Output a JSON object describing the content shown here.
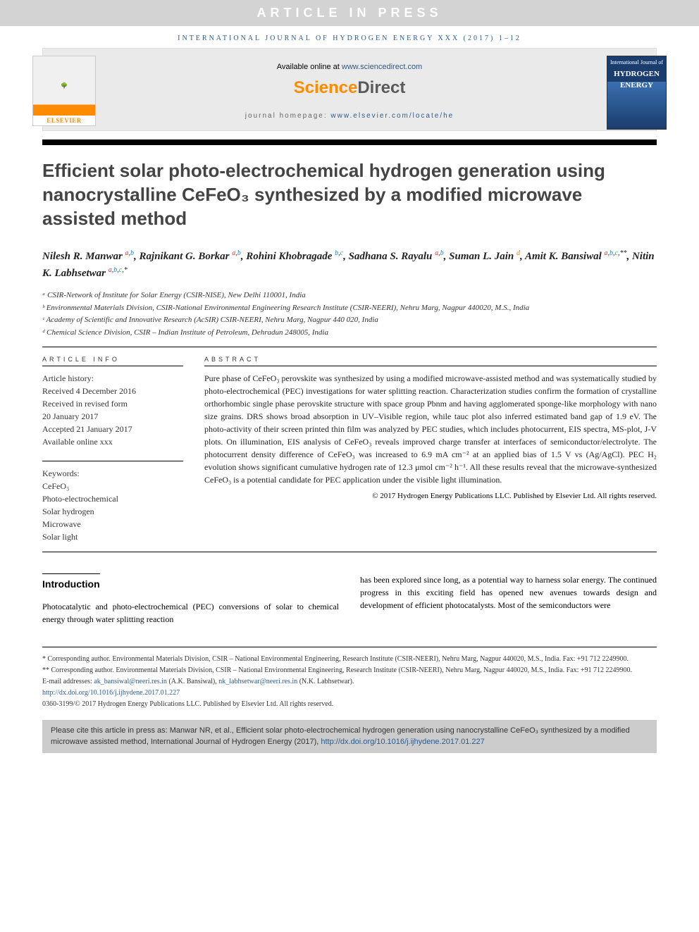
{
  "press_banner": "ARTICLE IN PRESS",
  "journal_header": "INTERNATIONAL JOURNAL OF HYDROGEN ENERGY XXX (2017) 1–12",
  "elsevier": "ELSEVIER",
  "available_prefix": "Available online at ",
  "available_link": "www.sciencedirect.com",
  "sd_logo_1": "Science",
  "sd_logo_2": "Direct",
  "homepage_prefix": "journal homepage: ",
  "homepage_link": "www.elsevier.com/locate/he",
  "cover_line1": "International Journal of",
  "cover_line2": "HYDROGEN",
  "cover_line3": "ENERGY",
  "title": "Efficient solar photo-electrochemical hydrogen generation using nanocrystalline CeFeO₃ synthesized by a modified microwave assisted method",
  "authors_html": "Nilesh R. Manwar <sup class='sup-a'>a</sup><sup>,</sup><sup class='sup-b'>b</sup>, Rajnikant G. Borkar <sup class='sup-a'>a</sup><sup>,</sup><sup class='sup-b'>b</sup>, Rohini Khobragade <sup class='sup-b'>b</sup><sup>,</sup><sup class='sup-c'>c</sup>, Sadhana S. Rayalu <sup class='sup-a'>a</sup><sup>,</sup><sup class='sup-b'>b</sup>, Suman L. Jain <sup class='sup-d'>d</sup>, Amit K. Bansiwal <sup class='sup-a'>a</sup><sup>,</sup><sup class='sup-b'>b</sup><sup>,</sup><sup class='sup-c'>c</sup><sup>,**</sup>, Nitin K. Labhsetwar <sup class='sup-a'>a</sup><sup>,</sup><sup class='sup-b'>b</sup><sup>,</sup><sup class='sup-c'>c</sup><sup>,*</sup>",
  "affiliations": {
    "a": "ᵃ CSIR-Network of Institute for Solar Energy (CSIR-NISE), New Delhi 110001, India",
    "b": "ᵇ Environmental Materials Division, CSIR-National Environmental Engineering Research Institute (CSIR-NEERI), Nehru Marg, Nagpur 440020, M.S., India",
    "c": "ᶜ Academy of Scientific and Innovative Research (AcSIR) CSIR-NEERI, Nehru Marg, Nagpur 440 020, India",
    "d": "ᵈ Chemical Science Division, CSIR – Indian Institute of Petroleum, Dehradun 248005, India"
  },
  "info_heading": "ARTICLE INFO",
  "abstract_heading": "ABSTRACT",
  "history_label": "Article history:",
  "history": {
    "received": "Received 4 December 2016",
    "revised1": "Received in revised form",
    "revised2": "20 January 2017",
    "accepted": "Accepted 21 January 2017",
    "online": "Available online xxx"
  },
  "keywords_label": "Keywords:",
  "keywords": [
    "CeFeO₃",
    "Photo-electrochemical",
    "Solar hydrogen",
    "Microwave",
    "Solar light"
  ],
  "abstract": "Pure phase of CeFeO₃ perovskite was synthesized by using a modified microwave-assisted method and was systematically studied by photo-electrochemical (PEC) investigations for water splitting reaction. Characterization studies confirm the formation of crystalline orthorhombic single phase perovskite structure with space group Pbnm and having agglomerated sponge-like morphology with nano size grains. DRS shows broad absorption in UV–Visible region, while tauc plot also inferred estimated band gap of 1.9 eV. The photo-activity of their screen printed thin film was analyzed by PEC studies, which includes photocurrent, EIS spectra, MS-plot, J-V plots. On illumination, EIS analysis of CeFeO₃ reveals improved charge transfer at interfaces of semiconductor/electrolyte. The photocurrent density difference of CeFeO₃ was increased to 6.9 mA cm⁻² at an applied bias of 1.5 V vs (Ag/AgCl). PEC H₂ evolution shows significant cumulative hydrogen rate of 12.3 μmol cm⁻² h⁻¹. All these results reveal that the microwave-synthesized CeFeO₃ is a potential candidate for PEC application under the visible light illumination.",
  "copyright": "© 2017 Hydrogen Energy Publications LLC. Published by Elsevier Ltd. All rights reserved.",
  "intro_heading": "Introduction",
  "intro_col1": "Photocatalytic and photo-electrochemical (PEC) conversions of solar to chemical energy through water splitting reaction",
  "intro_col2": "has been explored since long, as a potential way to harness solar energy. The continued progress in this exciting field has opened new avenues towards design and development of efficient photocatalysts. Most of the semiconductors were",
  "footnotes": {
    "corr1": "* Corresponding author. Environmental Materials Division, CSIR – National Environmental Engineering, Research Institute (CSIR-NEERI), Nehru Marg, Nagpur 440020, M.S., India. Fax: +91 712 2249900.",
    "corr2": "** Corresponding author. Environmental Materials Division, CSIR – National Environmental Engineering, Research Institute (CSIR-NEERI), Nehru Marg, Nagpur 440020, M.S., India. Fax: +91 712 2249900.",
    "email_prefix": "E-mail addresses: ",
    "email1": "ak_bansiwal@neeri.res.in",
    "email1_name": " (A.K. Bansiwal), ",
    "email2": "nk_labhsetwar@neeri.res.in",
    "email2_name": " (N.K. Labhsetwar).",
    "doi": "http://dx.doi.org/10.1016/j.ijhydene.2017.01.227",
    "issn": "0360-3199/© 2017 Hydrogen Energy Publications LLC. Published by Elsevier Ltd. All rights reserved."
  },
  "citebox_prefix": "Please cite this article in press as: Manwar NR, et al., Efficient solar photo-electrochemical hydrogen generation using nanocrystalline CeFeO₃ synthesized by a modified microwave assisted method, International Journal of Hydrogen Energy (2017), ",
  "citebox_link": "http://dx.doi.org/10.1016/j.ijhydene.2017.01.227"
}
